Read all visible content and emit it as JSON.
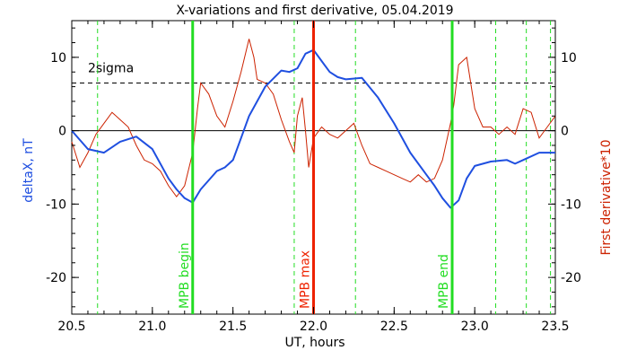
{
  "chart_data": {
    "type": "line",
    "title": "X-variations and first derivative, 05.04.2019",
    "xlabel": "UT, hours",
    "ylabel_left": "deltaX, nT",
    "ylabel_right": "First derivative*10",
    "xlim": [
      20.5,
      23.5
    ],
    "ylim": [
      -25,
      15
    ],
    "x_ticks": [
      "20.5",
      "21.0",
      "21.5",
      "22.0",
      "22.5",
      "23.0",
      "23.5"
    ],
    "y_ticks": [
      "-20",
      "-10",
      "0",
      "10"
    ],
    "colors": {
      "deltaX": "#1f4fe0",
      "derivative": "#cc2200",
      "mpb_lines": "#22dd22",
      "mpb_max": "#ee2200",
      "axes": "#000000"
    },
    "series": [
      {
        "key": "deltaX",
        "x": [
          20.5,
          20.6,
          20.7,
          20.8,
          20.9,
          21.0,
          21.1,
          21.15,
          21.2,
          21.25,
          21.3,
          21.4,
          21.45,
          21.5,
          21.55,
          21.6,
          21.7,
          21.8,
          21.85,
          21.9,
          21.95,
          22.0,
          22.05,
          22.1,
          22.15,
          22.2,
          22.3,
          22.4,
          22.5,
          22.6,
          22.7,
          22.75,
          22.8,
          22.85,
          22.9,
          22.95,
          23.0,
          23.1,
          23.2,
          23.25,
          23.3,
          23.4,
          23.5
        ],
        "y": [
          0,
          -2.5,
          -3.0,
          -1.5,
          -0.8,
          -2.5,
          -6.5,
          -8.0,
          -9.2,
          -9.8,
          -8.0,
          -5.5,
          -5.0,
          -4.0,
          -1.0,
          2.0,
          6.0,
          8.2,
          8.0,
          8.5,
          10.5,
          11.0,
          9.5,
          8.0,
          7.3,
          7.0,
          7.2,
          4.5,
          1.0,
          -3.0,
          -6.0,
          -7.5,
          -9.2,
          -10.5,
          -9.5,
          -6.5,
          -4.8,
          -4.2,
          -4.0,
          -4.5,
          -4.0,
          -3.0,
          -3.0
        ]
      },
      {
        "key": "derivative",
        "x": [
          20.5,
          20.55,
          20.6,
          20.65,
          20.7,
          20.75,
          20.8,
          20.85,
          20.9,
          20.95,
          21.0,
          21.05,
          21.1,
          21.15,
          21.2,
          21.25,
          21.28,
          21.3,
          21.35,
          21.4,
          21.45,
          21.5,
          21.55,
          21.6,
          21.63,
          21.65,
          21.7,
          21.75,
          21.8,
          21.85,
          21.88,
          21.9,
          21.93,
          21.95,
          21.97,
          22.0,
          22.05,
          22.1,
          22.15,
          22.2,
          22.25,
          22.3,
          22.35,
          22.4,
          22.45,
          22.5,
          22.55,
          22.6,
          22.65,
          22.7,
          22.75,
          22.8,
          22.85,
          22.87,
          22.9,
          22.95,
          23.0,
          23.05,
          23.1,
          23.15,
          23.2,
          23.25,
          23.3,
          23.35,
          23.4,
          23.45,
          23.5
        ],
        "y": [
          -1.5,
          -5.0,
          -3.0,
          -0.5,
          1.0,
          2.5,
          1.5,
          0.5,
          -2.0,
          -4.0,
          -4.5,
          -5.5,
          -7.5,
          -9.0,
          -7.5,
          -3.0,
          3.0,
          6.5,
          5.0,
          2.0,
          0.5,
          4.0,
          8.0,
          12.5,
          10.0,
          7.0,
          6.5,
          5.0,
          1.5,
          -1.5,
          -3.0,
          2.0,
          4.5,
          0,
          -5.0,
          -1.0,
          0.5,
          -0.5,
          -1.0,
          0,
          1.0,
          -2.0,
          -4.5,
          -5.0,
          -5.5,
          -6.0,
          -6.5,
          -7.0,
          -6.0,
          -7.0,
          -6.5,
          -4.0,
          1.0,
          3.5,
          9.0,
          10.0,
          3.0,
          0.5,
          0.5,
          -0.5,
          0.5,
          -0.5,
          3.0,
          2.5,
          -1.0,
          0.5,
          2.0
        ]
      }
    ],
    "threshold": {
      "label": "2sigma",
      "y": 6.5
    },
    "zero_line_y": 0,
    "vertical_lines": [
      {
        "kind": "dashed",
        "x": 20.66
      },
      {
        "kind": "dashed",
        "x": 21.88
      },
      {
        "kind": "dashed",
        "x": 22.26
      },
      {
        "kind": "dashed",
        "x": 23.13
      },
      {
        "kind": "dashed",
        "x": 23.32
      },
      {
        "kind": "dashed",
        "x": 23.47
      },
      {
        "kind": "mpb",
        "x": 21.25,
        "label": "MPB begin"
      },
      {
        "kind": "max",
        "x": 22.0,
        "label": "MPB max"
      },
      {
        "kind": "mpb",
        "x": 22.86,
        "label": "MPB end"
      }
    ]
  }
}
